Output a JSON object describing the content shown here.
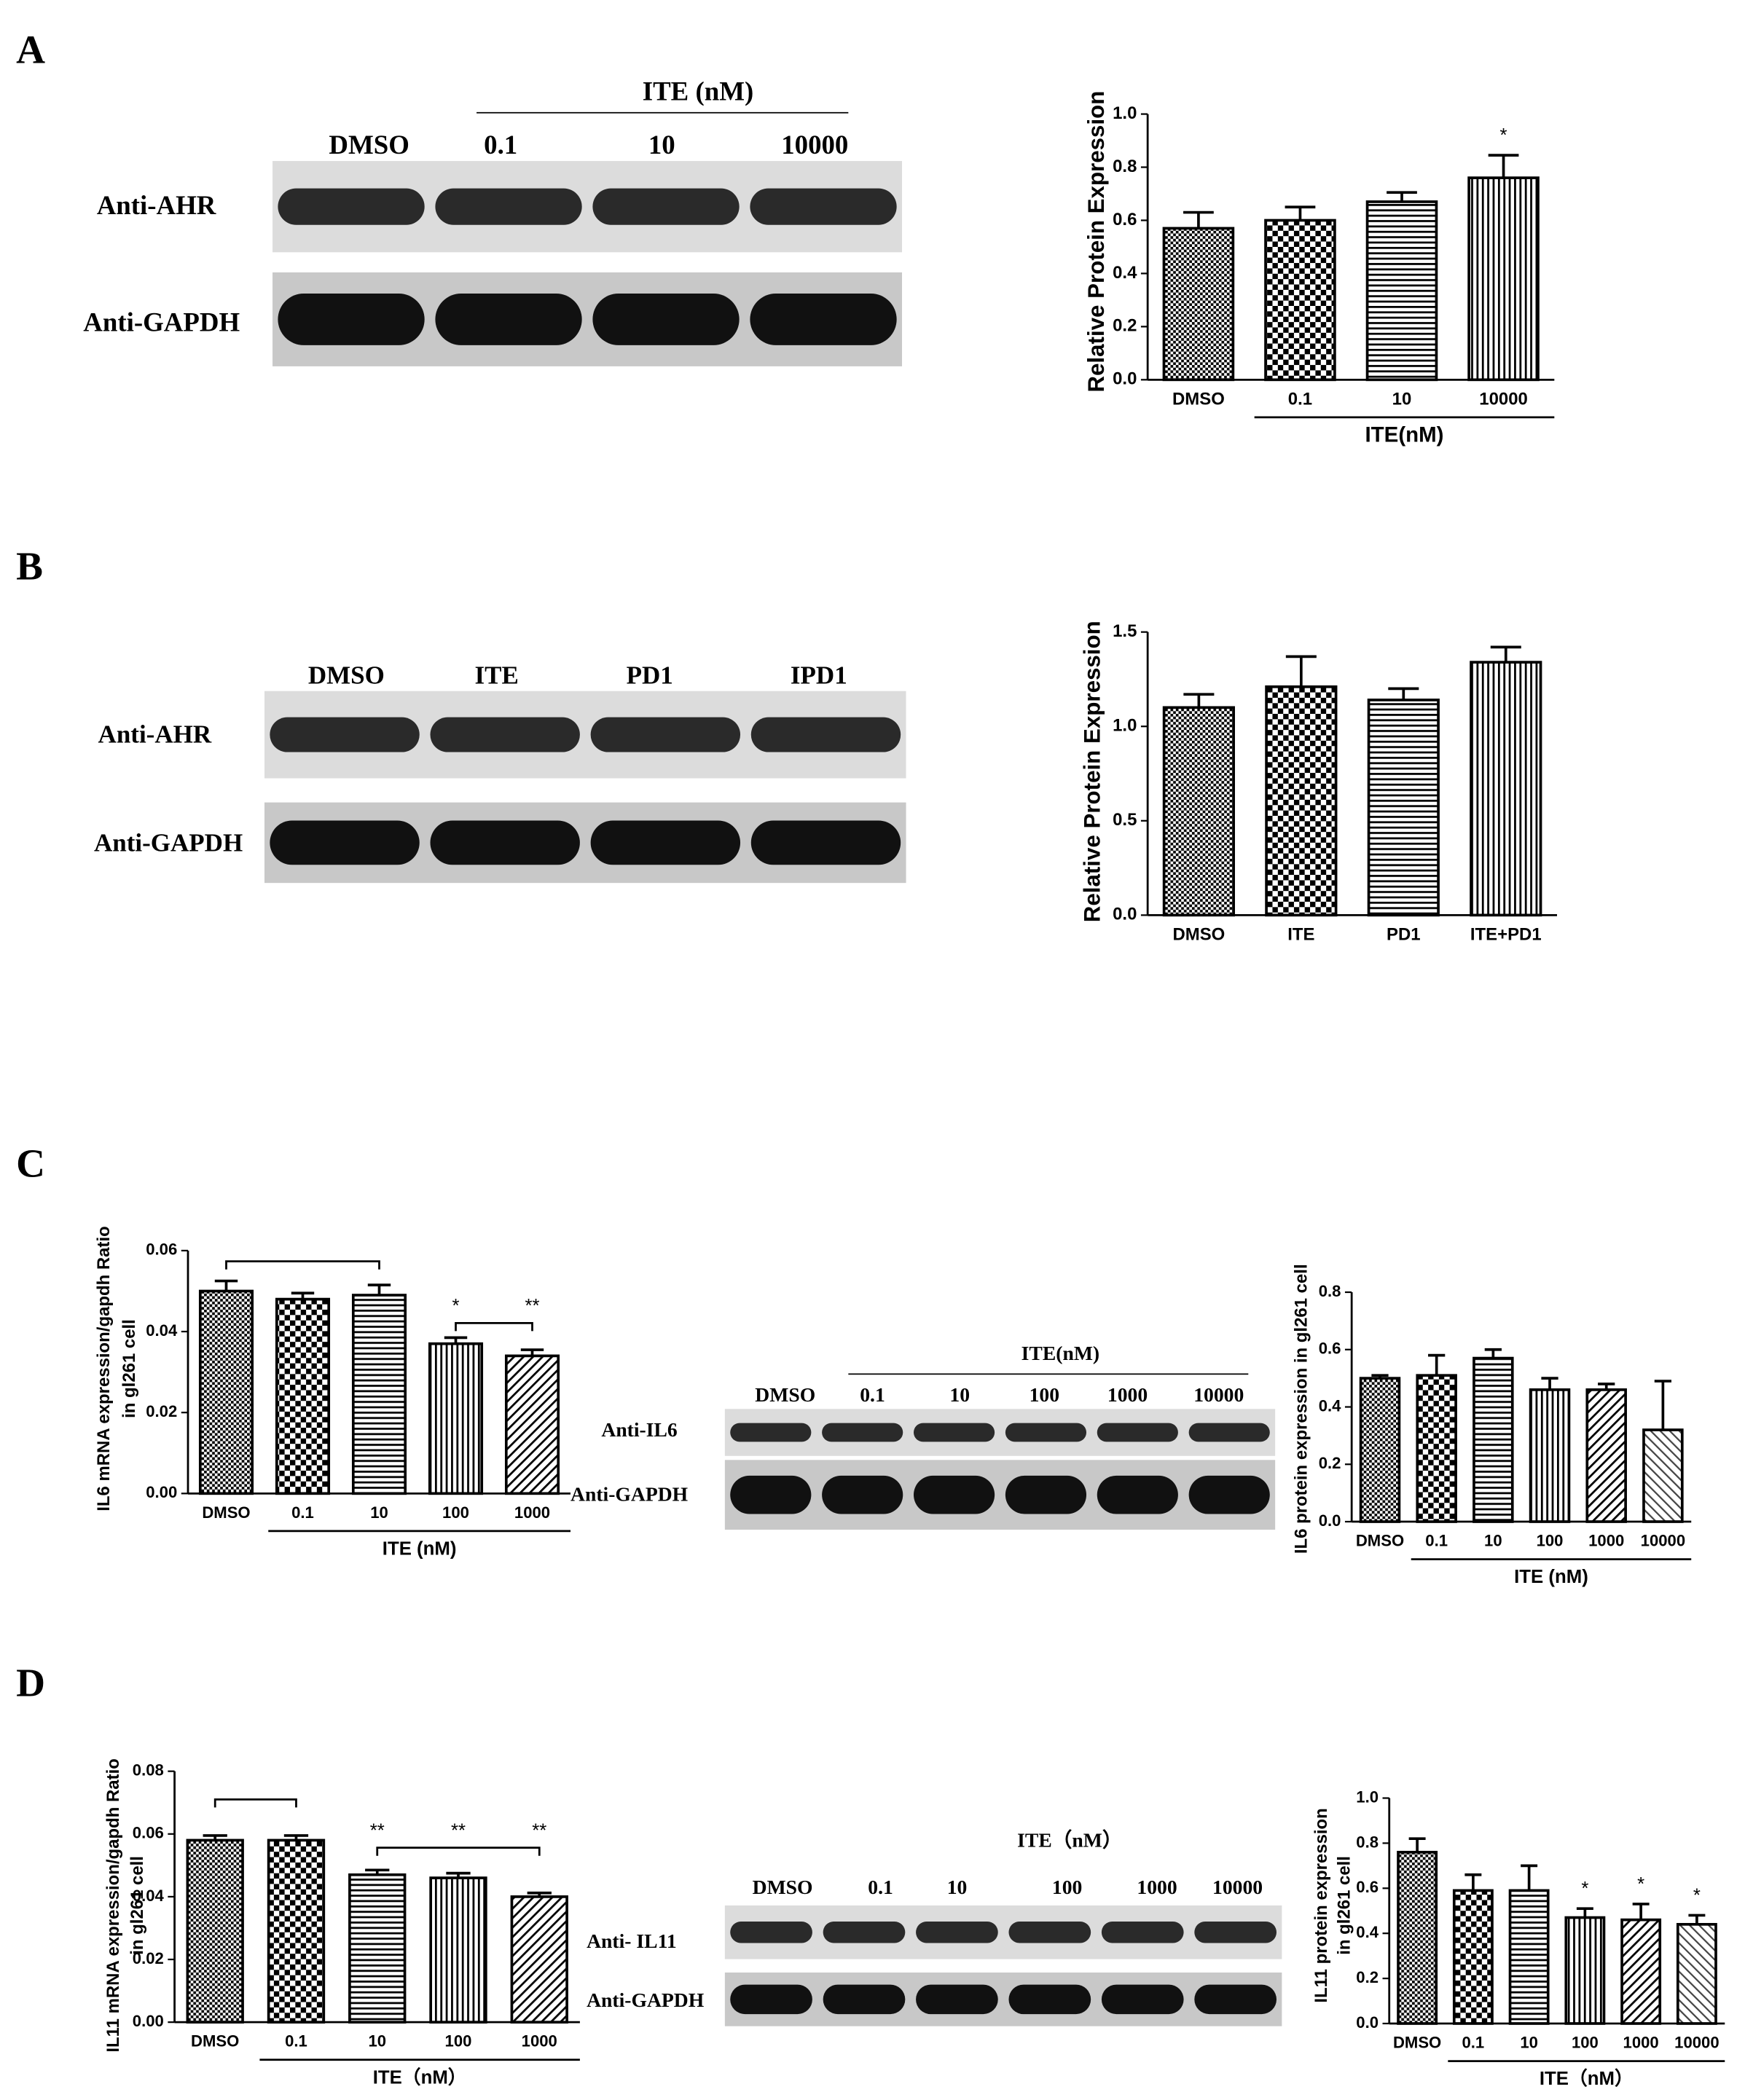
{
  "panel_labels": [
    "A",
    "B",
    "C",
    "D"
  ],
  "blots": [
    {
      "header": "ITE (nM)",
      "lanes": [
        "DMSO",
        "0.1",
        "10",
        "10000"
      ],
      "rows": [
        "Anti-AHR",
        "Anti-GAPDH"
      ]
    },
    {
      "lanes": [
        "DMSO",
        "ITE",
        "PD1",
        "IPD1"
      ],
      "rows": [
        "Anti-AHR",
        "Anti-GAPDH"
      ]
    },
    {
      "header": "ITE(nM)",
      "lanes": [
        "DMSO",
        "0.1",
        "10",
        "100",
        "1000",
        "10000"
      ],
      "rows": [
        "Anti-IL6",
        "Anti-GAPDH"
      ]
    },
    {
      "header": "ITE（nM）",
      "lanes": [
        "DMSO",
        "0.1",
        "10",
        "100",
        "1000",
        "10000"
      ],
      "rows": [
        "Anti-  IL11",
        "Anti-GAPDH"
      ]
    }
  ],
  "chart_data": [
    {
      "type": "bar",
      "ylabel": [
        "Relative Protein Expression"
      ],
      "categories": [
        "DMSO",
        "0.1",
        "10",
        "10000"
      ],
      "values": [
        0.57,
        0.6,
        0.67,
        0.76
      ],
      "errors": [
        0.06,
        0.05,
        0.035,
        0.085
      ],
      "significance": [
        null,
        null,
        null,
        "*"
      ],
      "group_label": "ITE(nM)",
      "color": "#000000",
      "ylim": [
        0,
        1.0
      ],
      "yticks": [
        {
          "value": 0,
          "label": "0.0"
        },
        0.2,
        0.4,
        0.6,
        0.8,
        {
          "value": 1.0,
          "label": "1.0"
        }
      ]
    },
    {
      "type": "bar",
      "ylabel": [
        "Relative Protein Expression"
      ],
      "categories": [
        "DMSO",
        "ITE",
        "PD1",
        "ITE+PD1"
      ],
      "values": [
        1.1,
        1.21,
        1.14,
        1.34
      ],
      "errors": [
        0.07,
        0.16,
        0.06,
        0.08
      ],
      "color": "#000000",
      "ylim": [
        0,
        1.5
      ],
      "yticks": [
        {
          "value": 0,
          "label": "0.0"
        },
        0.5,
        {
          "value": 1.0,
          "label": "1.0"
        },
        1.5
      ]
    },
    {
      "type": "bar",
      "ylabel": [
        "IL6 mRNA expression/gapdh Ratio",
        "in gl261 cell"
      ],
      "categories": [
        "DMSO",
        "0.1",
        "10",
        "100",
        "1000"
      ],
      "values": [
        0.05,
        0.048,
        0.049,
        0.037,
        0.034
      ],
      "errors": [
        0.0025,
        0.0015,
        0.0025,
        0.0015,
        0.0015
      ],
      "significance": [
        null,
        null,
        null,
        "*",
        "**"
      ],
      "group_label": "ITE (nM)",
      "color": "#000000",
      "ylim": [
        0,
        0.06
      ],
      "yticks": [
        {
          "value": 0,
          "label": "0.00"
        },
        0.02,
        0.04,
        0.06
      ]
    },
    {
      "type": "bar",
      "ylabel": [
        "IL6 protein expression in gl261 cell"
      ],
      "categories": [
        "DMSO",
        "0.1",
        "10",
        "100",
        "1000",
        "10000"
      ],
      "values": [
        0.5,
        0.51,
        0.57,
        0.46,
        0.46,
        0.32
      ],
      "errors": [
        0.01,
        0.07,
        0.03,
        0.04,
        0.02,
        0.17
      ],
      "group_label": "ITE (nM)",
      "color": "#000000",
      "ylim": [
        0,
        0.8
      ],
      "yticks": [
        {
          "value": 0,
          "label": "0.0"
        },
        0.2,
        0.4,
        0.6,
        0.8
      ]
    },
    {
      "type": "bar",
      "ylabel": [
        "IL11 mRNA expression/gapdh Ratio",
        "in gl261 cell"
      ],
      "categories": [
        "DMSO",
        "0.1",
        "10",
        "100",
        "1000"
      ],
      "values": [
        0.058,
        0.058,
        0.047,
        0.046,
        0.04
      ],
      "errors": [
        0.0015,
        0.0015,
        0.0015,
        0.0015,
        0.0012
      ],
      "significance": [
        null,
        null,
        "**",
        "**",
        "**"
      ],
      "group_label": "ITE（nM）",
      "color": "#000000",
      "ylim": [
        0,
        0.08
      ],
      "yticks": [
        {
          "value": 0,
          "label": "0.00"
        },
        0.02,
        0.04,
        0.06,
        0.08
      ]
    },
    {
      "type": "bar",
      "ylabel": [
        "IL11 protein expression",
        "in gl261 cell"
      ],
      "categories": [
        "DMSO",
        "0.1",
        "10",
        "100",
        "1000",
        "10000"
      ],
      "values": [
        0.76,
        0.59,
        0.59,
        0.47,
        0.46,
        0.44
      ],
      "errors": [
        0.06,
        0.07,
        0.11,
        0.04,
        0.07,
        0.04
      ],
      "significance": [
        null,
        null,
        null,
        "*",
        "*",
        "*"
      ],
      "group_label": "ITE（nM）",
      "color": "#000000",
      "ylim": [
        0,
        1.0
      ],
      "yticks": [
        {
          "value": 0,
          "label": "0.0"
        },
        0.2,
        0.4,
        0.6,
        0.8,
        {
          "value": 1.0,
          "label": "1.0"
        }
      ]
    }
  ]
}
